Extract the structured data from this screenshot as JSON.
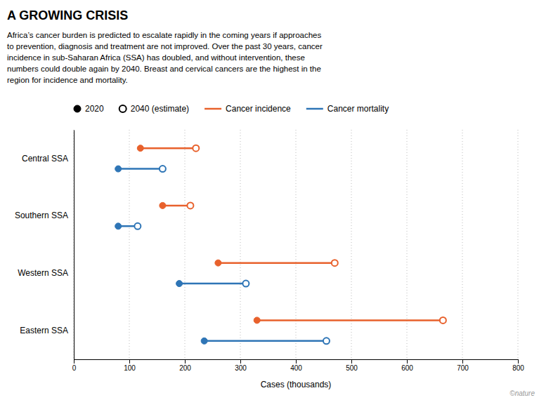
{
  "chart_data": {
    "type": "dumbbell",
    "orientation": "horizontal",
    "title": "A GROWING CRISIS",
    "subtitle": [
      "Africa’s cancer burden is predicted to escalate rapidly in the coming years if approaches",
      "to prevention, diagnosis and treatment are not improved. Over the past 30 years, cancer",
      "incidence in sub-Saharan Africa (SSA) has doubled, and without intervention, these",
      "numbers could double again by 2040. Breast and cervical cancers are the highest in the",
      "region for incidence and mortality."
    ],
    "categories": [
      "Central SSA",
      "Southern SSA",
      "Western SSA",
      "Eastern SSA"
    ],
    "periods": [
      {
        "name": "2020",
        "marker": "filled"
      },
      {
        "name": "2040 (estimate)",
        "marker": "open"
      }
    ],
    "series": [
      {
        "name": "Cancer incidence",
        "color": "#E8612C",
        "values": [
          120,
          160,
          260,
          330
        ],
        "end_values": [
          220,
          210,
          470,
          665
        ]
      },
      {
        "name": "Cancer mortality",
        "color": "#2E75B6",
        "values": [
          80,
          80,
          190,
          235
        ],
        "end_values": [
          160,
          115,
          310,
          455
        ]
      }
    ],
    "xlabel": "Cases (thousands)",
    "xlim": [
      0,
      800
    ],
    "xticks": [
      0,
      100,
      200,
      300,
      400,
      500,
      600,
      700,
      800
    ],
    "grid": true,
    "legend": "top",
    "annotations": [
      "©nature"
    ]
  }
}
